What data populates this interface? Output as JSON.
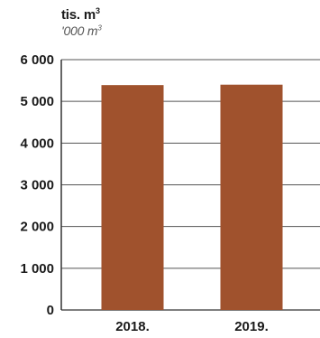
{
  "chart_data": {
    "type": "bar",
    "unit_label": "tis. m",
    "unit_label_sup": "3",
    "unit_label_secondary": "'000 m",
    "unit_label_secondary_sup": "3",
    "categories": [
      "2018.",
      "2019."
    ],
    "values": [
      5390,
      5400
    ],
    "ylim": [
      0,
      6000
    ],
    "yticks": [
      0,
      1000,
      2000,
      3000,
      4000,
      5000,
      6000
    ],
    "ytick_labels": [
      "0",
      "1 000",
      "2 000",
      "3 000",
      "4 000",
      "5 000",
      "6 000"
    ],
    "grid": true,
    "bar_color": "#a0522d",
    "grid_color": "#555555"
  }
}
